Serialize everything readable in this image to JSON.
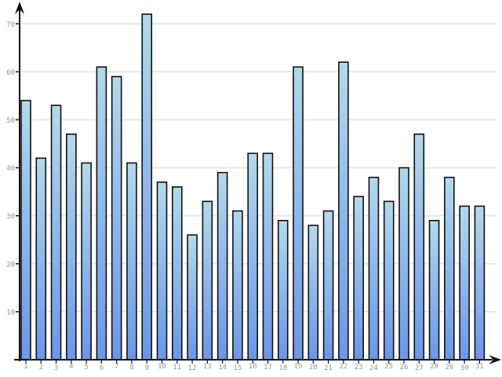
{
  "chart_data": {
    "type": "bar",
    "title": "",
    "xlabel": "",
    "ylabel": "",
    "categories": [
      "1",
      "2",
      "3",
      "4",
      "5",
      "6",
      "7",
      "8",
      "9",
      "10",
      "11",
      "12",
      "13",
      "14",
      "15",
      "16",
      "17",
      "18",
      "19",
      "20",
      "21",
      "22",
      "23",
      "24",
      "25",
      "26",
      "27",
      "28",
      "29",
      "30",
      "31"
    ],
    "values": [
      54,
      42,
      53,
      47,
      41,
      61,
      59,
      41,
      72,
      37,
      36,
      26,
      33,
      39,
      31,
      43,
      43,
      29,
      61,
      28,
      31,
      62,
      34,
      38,
      33,
      40,
      47,
      29,
      38,
      32,
      32
    ],
    "yticks": [
      10,
      20,
      30,
      40,
      50,
      60,
      70
    ],
    "ylim": [
      0,
      75
    ],
    "grid": true,
    "legend": false,
    "colors": {
      "background": "#ffffff",
      "bar_gradient_top": "#b3d9eb",
      "bar_gradient_bottom": "#6c96e8",
      "bar_border": "#111111",
      "gridline": "#e6e6e6",
      "axis": "#111111",
      "tick_label": "#969696"
    }
  }
}
